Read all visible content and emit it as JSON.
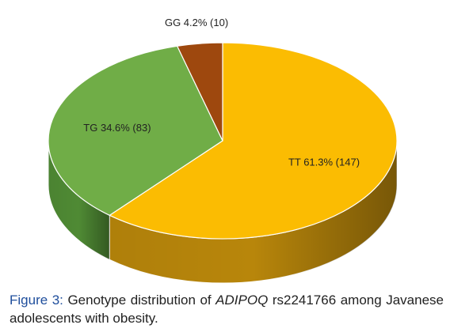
{
  "chart_data": {
    "type": "pie",
    "style": "3d",
    "slices": [
      {
        "name": "TT",
        "percent": 61.3,
        "count": 147,
        "label": "TT 61.3% (147)",
        "color": "#fbbc02",
        "side_color": "#b8860b"
      },
      {
        "name": "TG",
        "percent": 34.6,
        "count": 83,
        "label": "TG 34.6% (83)",
        "color": "#70ad47",
        "side_color": "#4f8a34"
      },
      {
        "name": "GG",
        "percent": 4.2,
        "count": 10,
        "label": "GG 4.2% (10)",
        "color": "#9e480e",
        "side_color": "#6b3009"
      }
    ],
    "title": "",
    "legend": "none"
  },
  "caption": {
    "label": "Figure 3:",
    "text_before": " Genotype distribution of ",
    "gene": "ADIPOQ",
    "text_after": " rs2241766 among Javanese adolescents with obesity."
  }
}
